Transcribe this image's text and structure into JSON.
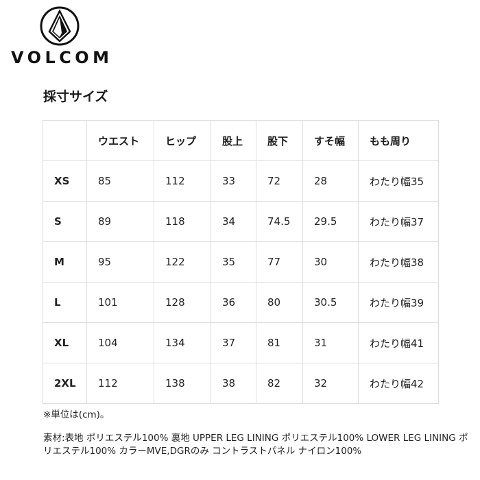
{
  "brand": {
    "name": "VOLCOM"
  },
  "title": "採寸サイズ",
  "table": {
    "headers": [
      "",
      "ウエスト",
      "ヒップ",
      "股上",
      "股下",
      "すそ幅",
      "もも周り"
    ],
    "rows": [
      [
        "XS",
        "85",
        "112",
        "33",
        "72",
        "28",
        "わたり幅35"
      ],
      [
        "S",
        "89",
        "118",
        "34",
        "74.5",
        "29.5",
        "わたり幅37"
      ],
      [
        "M",
        "95",
        "122",
        "35",
        "77",
        "30",
        "わたり幅38"
      ],
      [
        "L",
        "101",
        "128",
        "36",
        "80",
        "30.5",
        "わたり幅39"
      ],
      [
        "XL",
        "104",
        "134",
        "37",
        "81",
        "31",
        "わたり幅41"
      ],
      [
        "2XL",
        "112",
        "138",
        "38",
        "82",
        "32",
        "わたり幅42"
      ]
    ]
  },
  "note": "※単位は(cm)。",
  "material": "素材:表地 ポリエステル100% 裏地 UPPER LEG LINING ポリエステル100% LOWER LEG LINING ポリエステル100% カラーMVE,DGRのみ コントラストパネル ナイロン100%"
}
